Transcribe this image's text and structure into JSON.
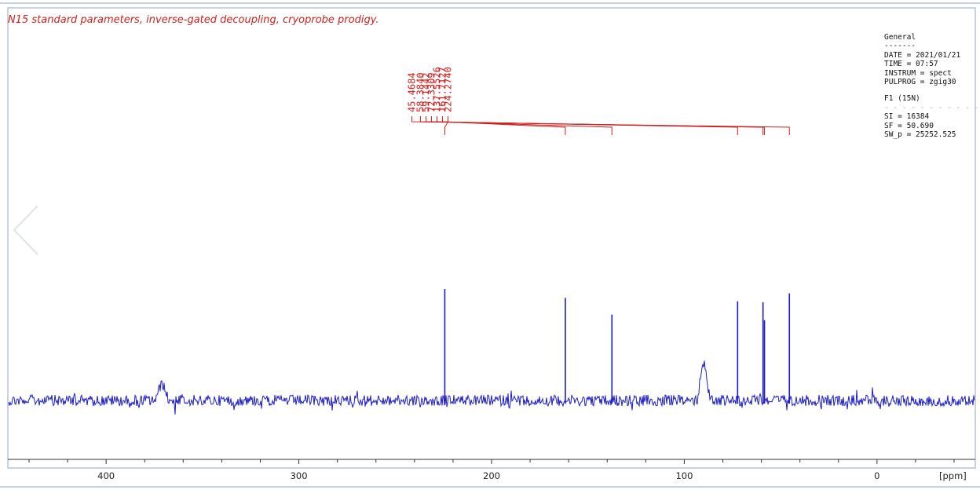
{
  "title": "N15 standard parameters, inverse-gated decoupling, cryoprobe prodigy.",
  "params": {
    "heading": "General",
    "rule": "-------",
    "date": "DATE = 2021/01/21",
    "time": "TIME = 07:57",
    "instrum": "INSTRUM = spect",
    "pulprog": "PULPROG = zgig30",
    "f1": "F1 (15N)",
    "f1_rule": "- - - - - - - - - - -",
    "si": "SI = 16384",
    "sf": "SF = 50.690",
    "sw_p": "SW_p = 25252.525"
  },
  "colors": {
    "spectrum": "#1d1dc8",
    "peak_labels": "#cc2222",
    "frame": "#b4c2d8"
  },
  "icons": {
    "nav": "chevron-left-icon"
  },
  "chart_data": {
    "type": "line",
    "title": "N15 standard parameters, inverse-gated decoupling, cryoprobe prodigy.",
    "xlabel": "[ppm]",
    "xlim": [
      451,
      -51
    ],
    "x_reversed": true,
    "x_ticks": [
      400,
      300,
      200,
      100,
      0
    ],
    "x_tick_labels": [
      "400",
      "300",
      "200",
      "100",
      "0"
    ],
    "grid": false,
    "baseline_noise": true,
    "peaks": [
      {
        "ppm": 224.274,
        "label": "224.2740",
        "intensity": 1.0
      },
      {
        "ppm": 161.7127,
        "label": "161.7127",
        "intensity": 0.92
      },
      {
        "ppm": 137.5526,
        "label": "137.5526",
        "intensity": 0.77
      },
      {
        "ppm": 72.3309,
        "label": "72.3309",
        "intensity": 0.89
      },
      {
        "ppm": 59.1442,
        "label": "59.1442",
        "intensity": 0.88
      },
      {
        "ppm": 58.384,
        "label": "58.3840",
        "intensity": 0.72
      },
      {
        "ppm": 45.4684,
        "label": "45.4684",
        "intensity": 0.96
      }
    ],
    "broad_features": [
      {
        "ppm": 371,
        "intensity": 0.15
      },
      {
        "ppm": 90,
        "intensity": 0.34
      }
    ]
  }
}
